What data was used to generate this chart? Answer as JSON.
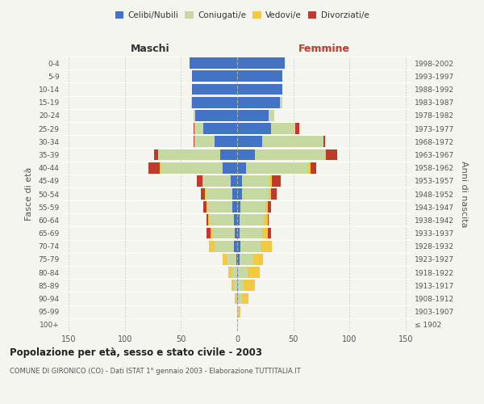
{
  "age_groups": [
    "100+",
    "95-99",
    "90-94",
    "85-89",
    "80-84",
    "75-79",
    "70-74",
    "65-69",
    "60-64",
    "55-59",
    "50-54",
    "45-49",
    "40-44",
    "35-39",
    "30-34",
    "25-29",
    "20-24",
    "15-19",
    "10-14",
    "5-9",
    "0-4"
  ],
  "birth_years": [
    "≤ 1902",
    "1903-1907",
    "1908-1912",
    "1913-1917",
    "1918-1922",
    "1923-1927",
    "1928-1932",
    "1933-1937",
    "1938-1942",
    "1943-1947",
    "1948-1952",
    "1953-1957",
    "1958-1962",
    "1963-1967",
    "1968-1972",
    "1973-1977",
    "1978-1982",
    "1983-1987",
    "1988-1992",
    "1993-1997",
    "1998-2002"
  ],
  "males": {
    "celibi": [
      0,
      0,
      0,
      0,
      0,
      1,
      3,
      2,
      3,
      4,
      4,
      6,
      13,
      15,
      20,
      30,
      37,
      40,
      40,
      40,
      42
    ],
    "coniugati": [
      0,
      0,
      1,
      3,
      5,
      8,
      17,
      20,
      22,
      22,
      24,
      25,
      55,
      55,
      18,
      8,
      2,
      1,
      0,
      0,
      0
    ],
    "vedovi": [
      0,
      0,
      1,
      2,
      3,
      4,
      5,
      2,
      1,
      1,
      1,
      0,
      1,
      0,
      0,
      0,
      0,
      0,
      0,
      0,
      0
    ],
    "divorziati": [
      0,
      0,
      0,
      0,
      0,
      0,
      0,
      3,
      1,
      3,
      3,
      5,
      10,
      4,
      1,
      1,
      0,
      0,
      0,
      0,
      0
    ]
  },
  "females": {
    "nubili": [
      0,
      0,
      1,
      1,
      1,
      2,
      3,
      2,
      2,
      3,
      4,
      4,
      8,
      16,
      22,
      30,
      28,
      38,
      40,
      40,
      42
    ],
    "coniugate": [
      0,
      1,
      3,
      5,
      8,
      12,
      18,
      20,
      22,
      22,
      24,
      25,
      55,
      62,
      55,
      22,
      5,
      2,
      0,
      0,
      0
    ],
    "vedove": [
      0,
      2,
      6,
      10,
      11,
      9,
      10,
      5,
      3,
      2,
      2,
      2,
      2,
      1,
      0,
      0,
      0,
      0,
      0,
      0,
      0
    ],
    "divorziate": [
      0,
      0,
      0,
      0,
      0,
      0,
      0,
      3,
      1,
      3,
      5,
      8,
      5,
      10,
      1,
      3,
      0,
      0,
      0,
      0,
      0
    ]
  },
  "colors": {
    "celibi": "#4472c4",
    "coniugati": "#c5d9a0",
    "vedovi": "#f5c842",
    "divorziati": "#c0392b"
  },
  "xlim": 155,
  "title": "Popolazione per età, sesso e stato civile - 2003",
  "subtitle": "COMUNE DI GIRONICO (CO) - Dati ISTAT 1° gennaio 2003 - Elaborazione TUTTITALIA.IT",
  "ylabel_left": "Fasce di età",
  "ylabel_right": "Anni di nascita",
  "xlabel_left": "Maschi",
  "xlabel_right": "Femmine",
  "bg_color": "#f5f5f0",
  "legend_labels": [
    "Celibi/Nubili",
    "Coniugati/e",
    "Vedovi/e",
    "Divorziati/e"
  ]
}
